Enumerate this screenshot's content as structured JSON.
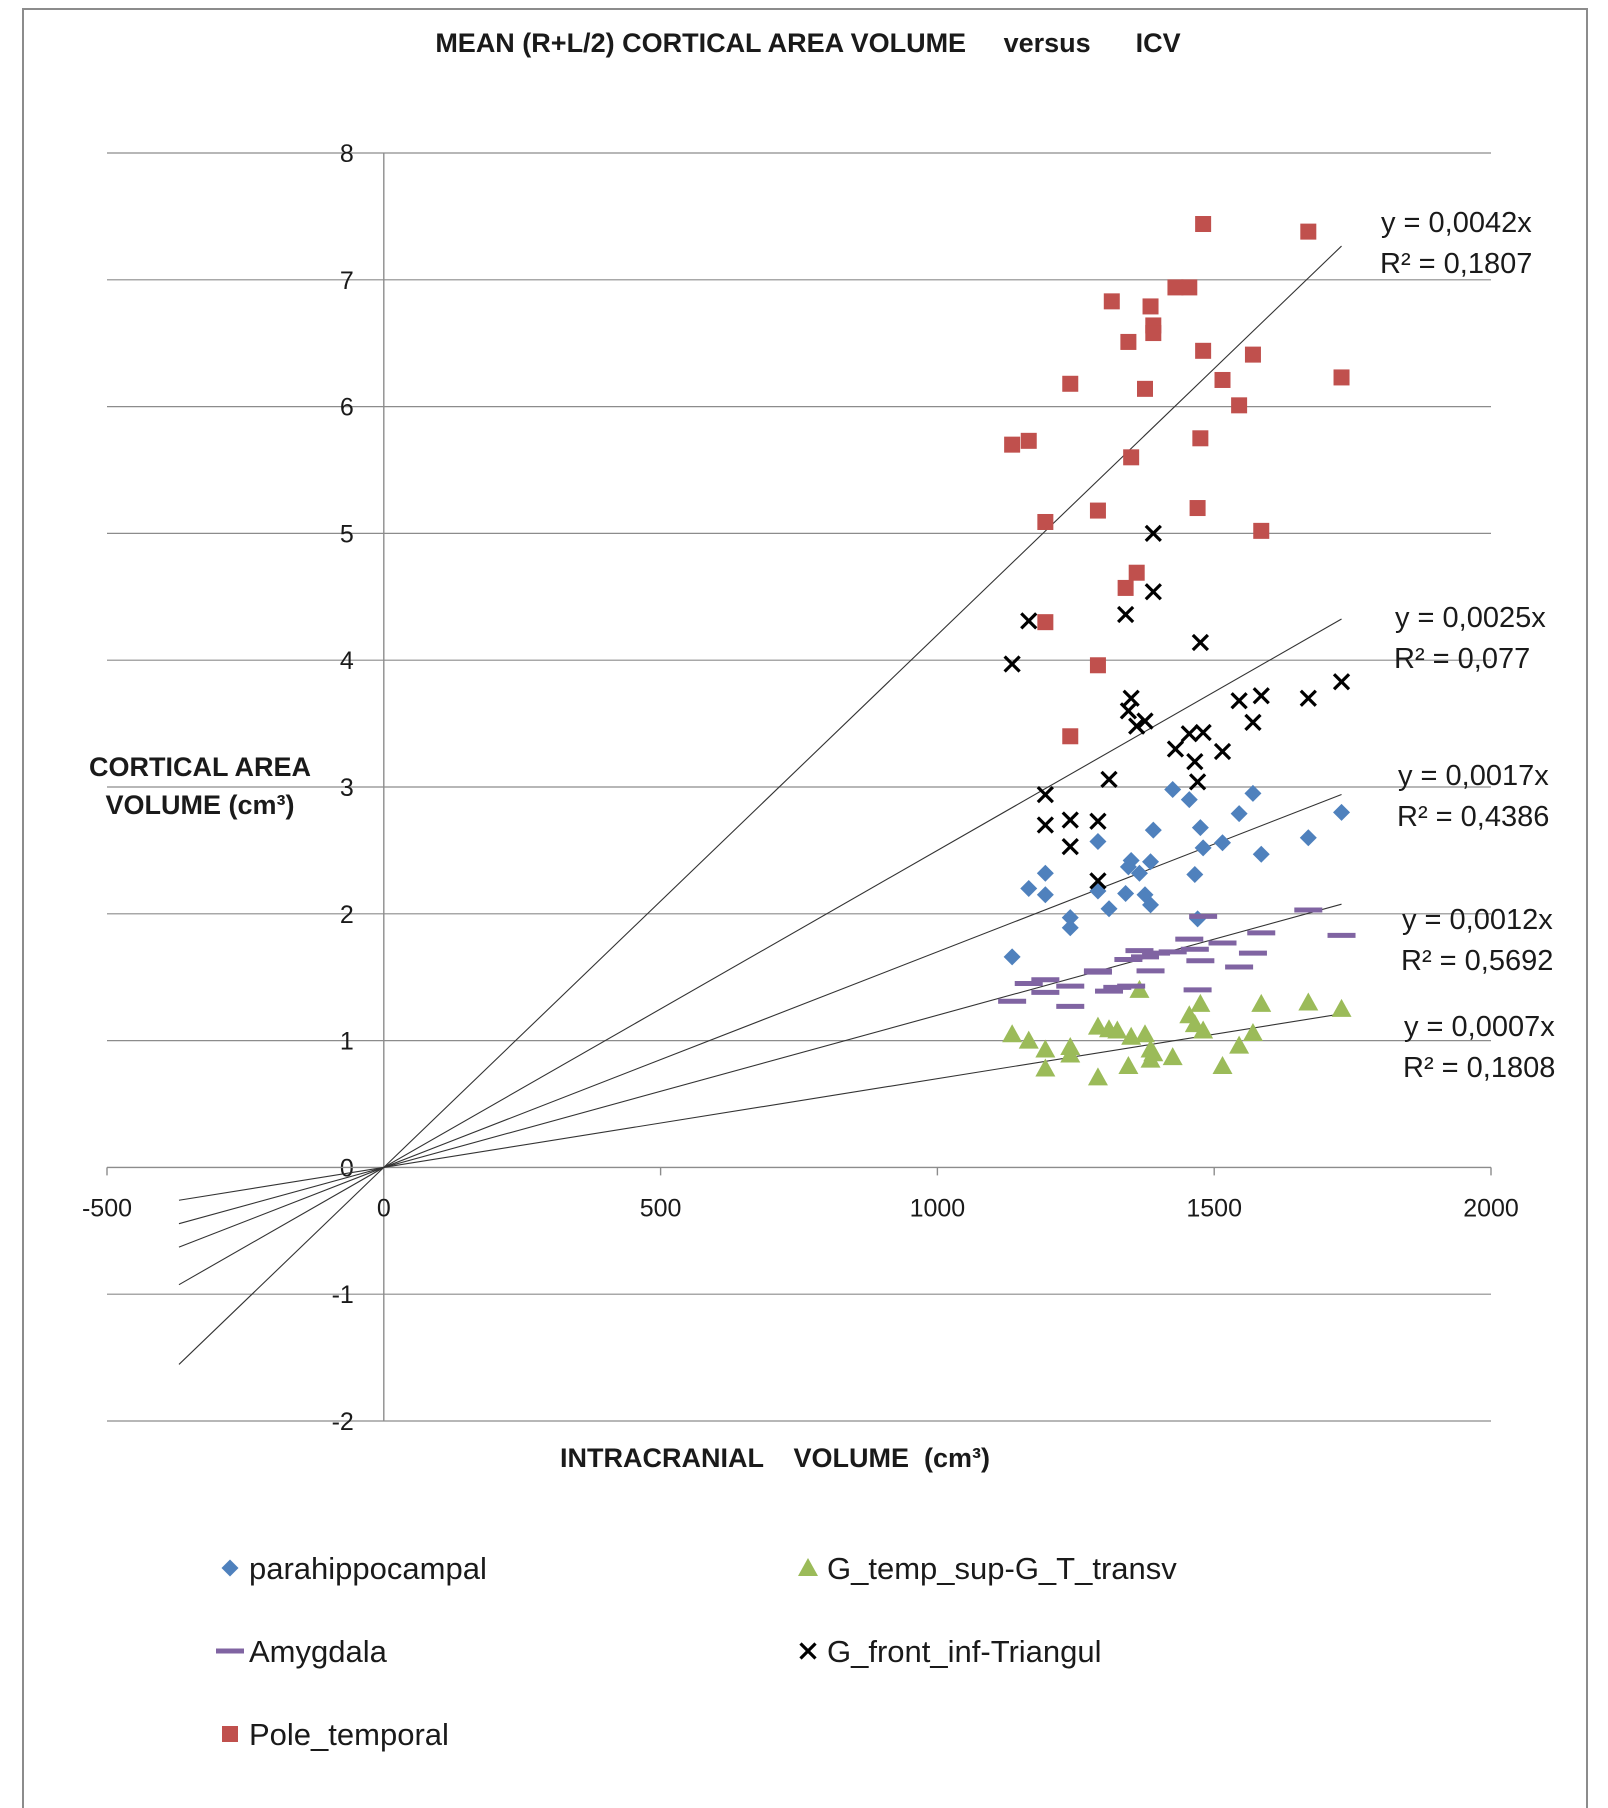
{
  "chart_data": {
    "type": "scatter",
    "title": "MEAN (R+L/2) CORTICAL AREA VOLUME     versus      ICV",
    "xlabel": "INTRACRANIAL    VOLUME  (cm³)",
    "ylabel_lines": [
      "CORTICAL AREA",
      "VOLUME (cm³)"
    ],
    "xlim": [
      -500,
      2000
    ],
    "ylim": [
      -2,
      8
    ],
    "xticks": [
      -500,
      0,
      500,
      1000,
      1500,
      2000
    ],
    "yticks": [
      -2,
      -1,
      0,
      1,
      2,
      3,
      4,
      5,
      6,
      7,
      8
    ],
    "grid": "horizontal",
    "legend_position": "bottom",
    "series": [
      {
        "name": "parahippocampal",
        "marker": "diamond",
        "color": "#4f81bd",
        "x": [
          1135,
          1165,
          1195,
          1195,
          1240,
          1240,
          1290,
          1290,
          1310,
          1340,
          1345,
          1350,
          1365,
          1375,
          1385,
          1385,
          1390,
          1425,
          1455,
          1465,
          1470,
          1475,
          1480,
          1515,
          1545,
          1570,
          1585,
          1670,
          1730
        ],
        "y": [
          1.66,
          2.2,
          2.32,
          2.15,
          1.97,
          1.89,
          2.57,
          2.18,
          2.04,
          2.16,
          2.37,
          2.42,
          2.32,
          2.15,
          2.07,
          2.41,
          2.66,
          2.98,
          2.9,
          2.31,
          1.96,
          2.68,
          2.52,
          2.56,
          2.79,
          2.95,
          2.47,
          2.6,
          2.8
        ]
      },
      {
        "name": "G_temp_sup-G_T_transv",
        "marker": "triangle",
        "color": "#9bbb59",
        "x": [
          1135,
          1165,
          1195,
          1195,
          1240,
          1240,
          1290,
          1290,
          1310,
          1325,
          1345,
          1350,
          1365,
          1375,
          1385,
          1385,
          1390,
          1425,
          1455,
          1465,
          1475,
          1480,
          1515,
          1545,
          1570,
          1585,
          1670,
          1730
        ],
        "y": [
          1.05,
          1.0,
          0.93,
          0.78,
          0.95,
          0.89,
          0.71,
          1.11,
          1.09,
          1.08,
          0.8,
          1.03,
          1.4,
          1.05,
          0.93,
          0.85,
          0.9,
          0.87,
          1.2,
          1.13,
          1.29,
          1.08,
          0.8,
          0.96,
          1.06,
          1.29,
          1.3,
          1.25
        ]
      },
      {
        "name": "Amygdala",
        "marker": "dash",
        "color": "#8064a2",
        "x": [
          1135,
          1165,
          1195,
          1195,
          1240,
          1240,
          1290,
          1290,
          1310,
          1325,
          1345,
          1350,
          1365,
          1375,
          1385,
          1395,
          1425,
          1455,
          1465,
          1470,
          1475,
          1480,
          1515,
          1545,
          1570,
          1585,
          1670,
          1730
        ],
        "y": [
          1.31,
          1.45,
          1.48,
          1.38,
          1.43,
          1.27,
          1.54,
          1.55,
          1.39,
          1.42,
          1.64,
          1.43,
          1.71,
          1.66,
          1.55,
          1.69,
          1.7,
          1.8,
          1.72,
          1.4,
          1.63,
          1.98,
          1.77,
          1.58,
          1.69,
          1.85,
          2.03,
          1.83
        ]
      },
      {
        "name": "G_front_inf-Triangul",
        "marker": "x",
        "color": "#000000",
        "x": [
          1135,
          1165,
          1195,
          1195,
          1240,
          1240,
          1290,
          1290,
          1310,
          1340,
          1345,
          1350,
          1360,
          1375,
          1390,
          1390,
          1430,
          1455,
          1465,
          1470,
          1475,
          1480,
          1515,
          1545,
          1570,
          1585,
          1670,
          1730
        ],
        "y": [
          3.97,
          4.31,
          2.94,
          2.7,
          2.74,
          2.53,
          2.73,
          2.26,
          3.06,
          4.36,
          3.6,
          3.7,
          3.48,
          3.52,
          5.0,
          4.54,
          3.3,
          3.42,
          3.2,
          3.04,
          4.14,
          3.43,
          3.28,
          3.68,
          3.51,
          3.72,
          3.7,
          3.83
        ]
      },
      {
        "name": "Pole_temporal",
        "marker": "square",
        "color": "#c0504d",
        "x": [
          1135,
          1165,
          1195,
          1195,
          1240,
          1240,
          1290,
          1290,
          1315,
          1340,
          1345,
          1350,
          1360,
          1375,
          1385,
          1390,
          1390,
          1430,
          1455,
          1470,
          1475,
          1480,
          1480,
          1515,
          1545,
          1570,
          1585,
          1670,
          1730
        ],
        "y": [
          5.7,
          5.73,
          5.09,
          4.3,
          6.18,
          3.4,
          5.18,
          3.96,
          6.83,
          4.57,
          6.51,
          5.6,
          4.69,
          6.14,
          6.79,
          6.64,
          6.58,
          6.94,
          6.94,
          5.2,
          5.75,
          7.44,
          6.44,
          6.21,
          6.01,
          6.41,
          5.02,
          7.38,
          6.23
        ]
      }
    ],
    "trendlines": [
      {
        "series": "Pole_temporal",
        "slope": 0.0042,
        "equation": "y = 0,0042x",
        "r2": "R² = 0,1807"
      },
      {
        "series": "G_front_inf-Triangul",
        "slope": 0.0025,
        "equation": "y = 0,0025x",
        "r2": "R² = 0,077"
      },
      {
        "series": "parahippocampal",
        "slope": 0.0017,
        "equation": "y = 0,0017x",
        "r2": "R² = 0,4386"
      },
      {
        "series": "Amygdala",
        "slope": 0.0012,
        "equation": "y = 0,0012x",
        "r2": "R² = 0,5692"
      },
      {
        "series": "G_temp_sup-G_T_transv",
        "slope": 0.0007,
        "equation": "y = 0,0007x",
        "r2": "R² = 0,1808"
      }
    ],
    "trendline_x_range": [
      -370,
      1730
    ],
    "legend": [
      {
        "name": "parahippocampal",
        "marker": "diamond",
        "color": "#4f81bd"
      },
      {
        "name": "G_temp_sup-G_T_transv",
        "marker": "triangle",
        "color": "#9bbb59"
      },
      {
        "name": "Amygdala",
        "marker": "dash",
        "color": "#8064a2"
      },
      {
        "name": "G_front_inf-Triangul",
        "marker": "x",
        "color": "#000000"
      },
      {
        "name": "Pole_temporal",
        "marker": "square",
        "color": "#c0504d"
      }
    ]
  }
}
